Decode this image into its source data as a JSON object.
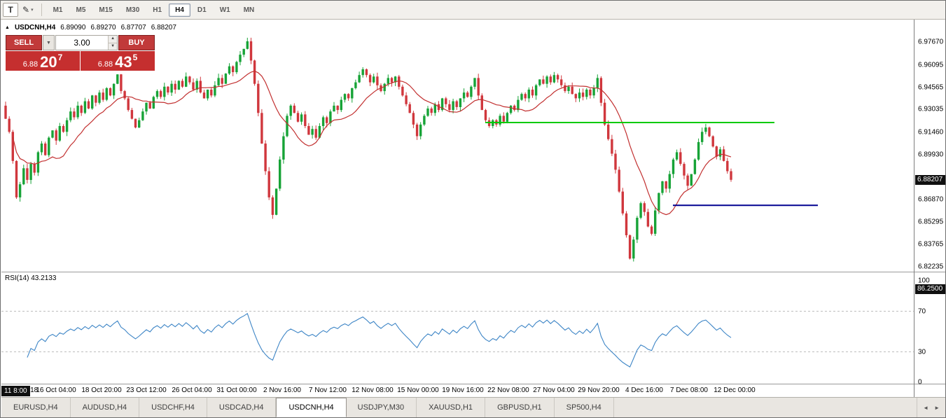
{
  "icons": {
    "draw_tool": "✎",
    "dropdown_small": "▾",
    "collapse": "▲",
    "spinner_up": "▲",
    "spinner_down": "▼",
    "trade_dropdown": "▼",
    "scroll_left": "◄",
    "scroll_right": "►"
  },
  "toolbar": {
    "templates_label": "T",
    "timeframes": [
      "M1",
      "M5",
      "M15",
      "M30",
      "H1",
      "H4",
      "D1",
      "W1",
      "MN"
    ],
    "active_timeframe": "H4"
  },
  "chart": {
    "header": {
      "symbol_period": "USDCNH,H4",
      "open": "6.89090",
      "high": "6.89270",
      "low": "6.87707",
      "close": "6.88207"
    },
    "trade_panel": {
      "sell_label": "SELL",
      "buy_label": "BUY",
      "volume": "3.00",
      "bid_prefix": "6.88",
      "bid_main": "20",
      "bid_pip": "7",
      "ask_prefix": "6.88",
      "ask_main": "43",
      "ask_pip": "5"
    },
    "current_price_label": "6.88207",
    "colors": {
      "up": "#17a337",
      "down": "#d0373d",
      "ma": "#c23030",
      "resistance": "#00ca00",
      "support": "#000090",
      "rsi": "#3d85c6",
      "grid_dash": "#bdbdbd"
    }
  },
  "rsi": {
    "label": "RSI(14) 43.2133",
    "badge": "86.2500",
    "axis_labels": [
      "100",
      "70",
      "30",
      "0"
    ]
  },
  "time_axis": {
    "badge": "11 8:00",
    "year": "2018",
    "labels": [
      "16 Oct 04:00",
      "18 Oct 20:00",
      "23 Oct 12:00",
      "26 Oct 04:00",
      "31 Oct 00:00",
      "2 Nov 16:00",
      "7 Nov 12:00",
      "12 Nov 08:00",
      "15 Nov 00:00",
      "19 Nov 16:00",
      "22 Nov 08:00",
      "27 Nov 04:00",
      "29 Nov 20:00",
      "4 Dec 16:00",
      "7 Dec 08:00",
      "12 Dec 00:00"
    ]
  },
  "tabs": {
    "items": [
      "EURUSD,H4",
      "AUDUSD,H4",
      "USDCHF,H4",
      "USDCAD,H4",
      "USDCNH,H4",
      "USDJPY,M30",
      "XAUUSD,H1",
      "GBPUSD,H1",
      "SP500,H4"
    ],
    "active_index": 4
  },
  "chart_data": {
    "type": "candlestick",
    "symbol": "USDCNH",
    "timeframe": "H4",
    "title": "USDCNH,H4",
    "current_bar": {
      "open": 6.8909,
      "high": 6.8927,
      "low": 6.87707,
      "close": 6.88207
    },
    "current_price": 6.88207,
    "y_axis_labels": [
      "6.97670",
      "6.96095",
      "6.94565",
      "6.93035",
      "6.91460",
      "6.89930",
      "6.86870",
      "6.85295",
      "6.83765",
      "6.82235"
    ],
    "ylim": [
      6.819,
      6.983
    ],
    "price": {
      "first_open": 6.933,
      "ma_period": 14,
      "closes": [
        6.924,
        6.915,
        6.895,
        6.87,
        6.879,
        6.89,
        6.882,
        6.893,
        6.887,
        6.901,
        6.907,
        6.899,
        6.911,
        6.916,
        6.909,
        6.919,
        6.915,
        6.923,
        6.929,
        6.925,
        6.933,
        6.928,
        6.936,
        6.931,
        6.94,
        6.935,
        6.942,
        6.937,
        6.945,
        6.94,
        6.948,
        6.9545,
        6.943,
        6.938,
        6.93,
        6.924,
        6.918,
        6.923,
        6.929,
        6.935,
        6.931,
        6.939,
        6.943,
        6.939,
        6.946,
        6.942,
        6.948,
        6.944,
        6.95,
        6.946,
        6.953,
        6.949,
        6.944,
        6.95,
        6.942,
        6.938,
        6.944,
        6.94,
        6.947,
        6.952,
        6.948,
        6.955,
        6.96,
        6.956,
        6.963,
        6.968,
        6.972,
        6.9772,
        6.964,
        6.948,
        6.928,
        6.907,
        6.888,
        6.87,
        6.858,
        6.876,
        6.896,
        6.912,
        6.926,
        6.933,
        6.928,
        6.922,
        6.927,
        6.919,
        6.913,
        6.917,
        6.911,
        6.919,
        6.925,
        6.921,
        6.929,
        6.933,
        6.93,
        6.937,
        6.941,
        6.938,
        6.945,
        6.949,
        6.954,
        6.958,
        6.954,
        6.949,
        6.953,
        6.947,
        6.943,
        6.948,
        6.952,
        6.949,
        6.953,
        6.946,
        6.94,
        6.934,
        6.928,
        6.92,
        6.912,
        6.92,
        6.926,
        6.931,
        6.928,
        6.934,
        6.93,
        6.938,
        6.934,
        6.93,
        6.936,
        6.932,
        6.938,
        6.942,
        6.939,
        6.946,
        6.952,
        6.94,
        6.93,
        6.923,
        6.919,
        6.923,
        6.92,
        6.926,
        6.922,
        6.928,
        6.933,
        6.93,
        6.937,
        6.941,
        6.938,
        6.944,
        6.94,
        6.947,
        6.951,
        6.948,
        6.953,
        6.949,
        6.954,
        6.951,
        6.947,
        6.943,
        6.946,
        6.941,
        6.938,
        6.942,
        6.939,
        6.944,
        6.94,
        6.945,
        6.952,
        6.935,
        6.92,
        6.91,
        6.9,
        6.889,
        6.874,
        6.859,
        6.844,
        6.828,
        6.841,
        6.856,
        6.866,
        6.86,
        6.85,
        6.845,
        6.861,
        6.873,
        6.881,
        6.876,
        6.886,
        6.896,
        6.901,
        6.893,
        6.885,
        6.878,
        6.886,
        6.896,
        6.908,
        6.915,
        6.918,
        6.912,
        6.905,
        6.898,
        6.903,
        6.895,
        6.888,
        6.8821
      ],
      "levels": {
        "resistance": {
          "price": 6.9214,
          "from_bar": 133,
          "to_bar": 213
        },
        "support": {
          "price": 6.8645,
          "from_bar": 185,
          "to_bar": 225
        }
      }
    },
    "rsi": {
      "period": 14,
      "current": 43.2133,
      "levels": [
        70,
        30
      ],
      "range": [
        0,
        100
      ],
      "legend": "RSI(14)"
    }
  }
}
